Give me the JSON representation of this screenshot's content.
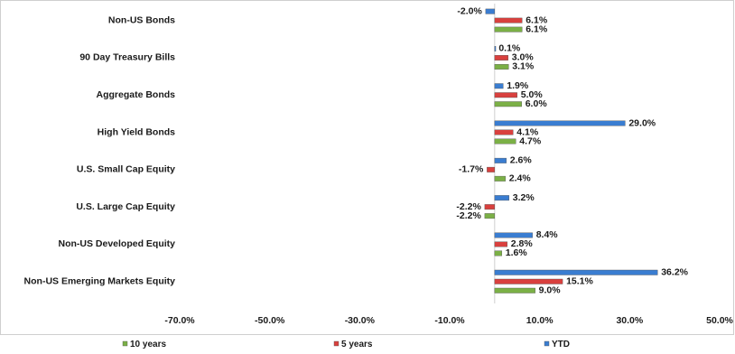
{
  "chart_data": {
    "type": "bar",
    "orientation": "horizontal",
    "categories": [
      "Non-US Bonds",
      "90 Day Treasury Bills",
      "Aggregate Bonds",
      "High Yield Bonds",
      "U.S. Small Cap Equity",
      "U.S. Large Cap Equity",
      "Non-US Developed Equity",
      "Non-US Emerging Markets Equity"
    ],
    "series": [
      {
        "name": "YTD",
        "color": "#3a7dd1",
        "values": [
          -2.0,
          0.1,
          1.9,
          29.0,
          2.6,
          3.2,
          8.4,
          36.2
        ],
        "labels": [
          "-2.0%",
          "0.1%",
          "1.9%",
          "29.0%",
          "2.6%",
          "3.2%",
          "8.4%",
          "36.2%"
        ]
      },
      {
        "name": "5 years",
        "color": "#d9403e",
        "values": [
          6.1,
          3.0,
          5.0,
          4.1,
          -1.7,
          -2.2,
          2.8,
          15.1
        ],
        "labels": [
          "6.1%",
          "3.0%",
          "5.0%",
          "4.1%",
          "-1.7%",
          "-2.2%",
          "2.8%",
          "15.1%"
        ]
      },
      {
        "name": "10 years",
        "color": "#7bb046",
        "values": [
          6.1,
          3.1,
          6.0,
          4.7,
          2.4,
          -2.2,
          1.6,
          9.0
        ],
        "labels": [
          "6.1%",
          "3.1%",
          "6.0%",
          "4.7%",
          "2.4%",
          "-2.2%",
          "1.6%",
          "9.0%"
        ]
      }
    ],
    "xlim": [
      -70,
      50
    ],
    "xticks": [
      -70,
      -50,
      -30,
      -10,
      10,
      30,
      50
    ],
    "xtick_labels": [
      "-70.0%",
      "-50.0%",
      "-30.0%",
      "-10.0%",
      "10.0%",
      "30.0%",
      "50.0%"
    ],
    "title": "",
    "xlabel": "",
    "ylabel": "",
    "grid": false,
    "legend_placement": "bottom",
    "legend": [
      "10 years",
      "5 years",
      "YTD"
    ]
  }
}
